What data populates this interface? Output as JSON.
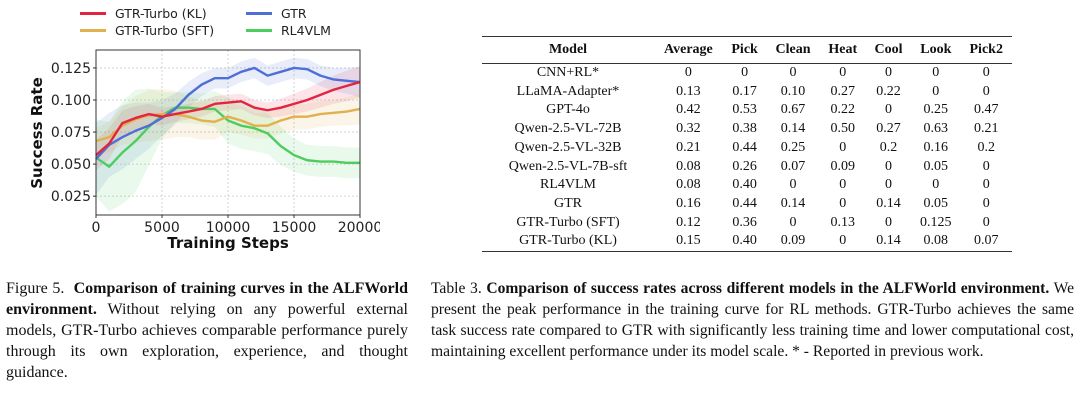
{
  "figure": {
    "caption_label": "Figure 5.",
    "caption_bold": "Comparison of training curves in the ALFWorld environment.",
    "caption_text": "Without relying on any powerful external models, GTR-Turbo achieves comparable performance purely through its own exploration, experience, and thought guidance."
  },
  "chart_data": {
    "type": "line",
    "title": "",
    "xlabel": "Training Steps",
    "ylabel": "Success Rate",
    "xlim": [
      0,
      20000
    ],
    "ylim": [
      0.0103,
      0.139
    ],
    "xticks": [
      0,
      5000,
      10000,
      15000,
      20000
    ],
    "xtick_labels": [
      "0",
      "5000",
      "10000",
      "15000",
      "20000"
    ],
    "yticks": [
      0.025,
      0.05,
      0.075,
      0.1,
      0.125
    ],
    "ytick_labels": [
      "0.025",
      "0.050",
      "0.075",
      "0.100",
      "0.125"
    ],
    "grid": true,
    "legend_position": "top",
    "legend": [
      "GTR-Turbo (KL)",
      "GTR",
      "GTR-Turbo (SFT)",
      "RL4VLM"
    ],
    "series": [
      {
        "name": "GTR-Turbo (KL)",
        "color": "#e4243f",
        "x": [
          0,
          1000,
          2000,
          3000,
          4000,
          5000,
          6000,
          7000,
          8000,
          9000,
          10000,
          11000,
          12000,
          13000,
          14000,
          15000,
          16000,
          17000,
          18000,
          19000,
          20000
        ],
        "y": [
          0.057,
          0.066,
          0.082,
          0.086,
          0.089,
          0.087,
          0.089,
          0.091,
          0.093,
          0.097,
          0.098,
          0.099,
          0.094,
          0.092,
          0.094,
          0.097,
          0.1,
          0.104,
          0.108,
          0.111,
          0.114
        ],
        "band": [
          0.012,
          0.012,
          0.01,
          0.009,
          0.008,
          0.007,
          0.006,
          0.006,
          0.006,
          0.006,
          0.006,
          0.006,
          0.006,
          0.006,
          0.007,
          0.008,
          0.009,
          0.01,
          0.011,
          0.012,
          0.012
        ]
      },
      {
        "name": "GTR",
        "color": "#4e6fd8",
        "x": [
          0,
          1000,
          2000,
          3000,
          4000,
          5000,
          6000,
          7000,
          8000,
          9000,
          10000,
          11000,
          12000,
          13000,
          14000,
          15000,
          16000,
          17000,
          18000,
          19000,
          20000
        ],
        "y": [
          0.054,
          0.065,
          0.071,
          0.076,
          0.08,
          0.086,
          0.093,
          0.104,
          0.112,
          0.117,
          0.117,
          0.122,
          0.125,
          0.119,
          0.122,
          0.125,
          0.124,
          0.119,
          0.116,
          0.115,
          0.114
        ],
        "band": [
          0.028,
          0.025,
          0.025,
          0.022,
          0.018,
          0.014,
          0.012,
          0.01,
          0.009,
          0.008,
          0.008,
          0.008,
          0.008,
          0.008,
          0.008,
          0.008,
          0.008,
          0.008,
          0.009,
          0.01,
          0.012
        ]
      },
      {
        "name": "GTR-Turbo (SFT)",
        "color": "#e2b04c",
        "x": [
          0,
          1000,
          2000,
          3000,
          4000,
          5000,
          6000,
          7000,
          8000,
          9000,
          10000,
          11000,
          12000,
          13000,
          14000,
          15000,
          16000,
          17000,
          18000,
          19000,
          20000
        ],
        "y": [
          0.068,
          0.071,
          0.08,
          0.085,
          0.088,
          0.089,
          0.089,
          0.087,
          0.084,
          0.083,
          0.087,
          0.084,
          0.08,
          0.08,
          0.084,
          0.087,
          0.087,
          0.089,
          0.09,
          0.091,
          0.093
        ],
        "band": [
          0.01,
          0.012,
          0.015,
          0.018,
          0.02,
          0.02,
          0.018,
          0.016,
          0.015,
          0.014,
          0.012,
          0.011,
          0.01,
          0.01,
          0.01,
          0.01,
          0.01,
          0.01,
          0.01,
          0.011,
          0.012
        ]
      },
      {
        "name": "RL4VLM",
        "color": "#4ccd5e",
        "x": [
          0,
          1000,
          2000,
          3000,
          4000,
          5000,
          6000,
          7000,
          8000,
          9000,
          10000,
          11000,
          12000,
          13000,
          14000,
          15000,
          16000,
          17000,
          18000,
          19000,
          20000
        ],
        "y": [
          0.055,
          0.048,
          0.059,
          0.068,
          0.079,
          0.088,
          0.094,
          0.094,
          0.093,
          0.093,
          0.084,
          0.08,
          0.078,
          0.074,
          0.064,
          0.057,
          0.053,
          0.052,
          0.052,
          0.051,
          0.051
        ],
        "band": [
          0.03,
          0.035,
          0.04,
          0.04,
          0.03,
          0.018,
          0.012,
          0.012,
          0.012,
          0.014,
          0.018,
          0.018,
          0.018,
          0.016,
          0.015,
          0.013,
          0.012,
          0.012,
          0.012,
          0.012,
          0.012
        ]
      }
    ]
  },
  "table": {
    "caption_label": "Table 3.",
    "caption_bold": "Comparison of success rates across different models in the ALFWorld environment.",
    "caption_text": "We present the peak performance in the training curve for RL methods. GTR-Turbo achieves the same task success rate compared to GTR with significantly less training time and lower computational cost, maintaining excellent performance under its model scale. * - Reported in previous work.",
    "headers": [
      "Model",
      "Average",
      "Pick",
      "Clean",
      "Heat",
      "Cool",
      "Look",
      "Pick2"
    ],
    "rows": [
      [
        "CNN+RL*",
        "0",
        "0",
        "0",
        "0",
        "0",
        "0",
        "0"
      ],
      [
        "LLaMA-Adapter*",
        "0.13",
        "0.17",
        "0.10",
        "0.27",
        "0.22",
        "0",
        "0"
      ],
      [
        "GPT-4o",
        "0.42",
        "0.53",
        "0.67",
        "0.22",
        "0",
        "0.25",
        "0.47"
      ],
      [
        "Qwen-2.5-VL-72B",
        "0.32",
        "0.38",
        "0.14",
        "0.50",
        "0.27",
        "0.63",
        "0.21"
      ],
      [
        "Qwen-2.5-VL-32B",
        "0.21",
        "0.44",
        "0.25",
        "0",
        "0.2",
        "0.16",
        "0.2"
      ],
      [
        "Qwen-2.5-VL-7B-sft",
        "0.08",
        "0.26",
        "0.07",
        "0.09",
        "0",
        "0.05",
        "0"
      ],
      [
        "RL4VLM",
        "0.08",
        "0.40",
        "0",
        "0",
        "0",
        "0",
        "0"
      ],
      [
        "GTR",
        "0.16",
        "0.44",
        "0.14",
        "0",
        "0.14",
        "0.05",
        "0"
      ],
      [
        "GTR-Turbo (SFT)",
        "0.12",
        "0.36",
        "0",
        "0.13",
        "0",
        "0.125",
        "0"
      ],
      [
        "GTR-Turbo (KL)",
        "0.15",
        "0.40",
        "0.09",
        "0",
        "0.14",
        "0.08",
        "0.07"
      ]
    ]
  }
}
